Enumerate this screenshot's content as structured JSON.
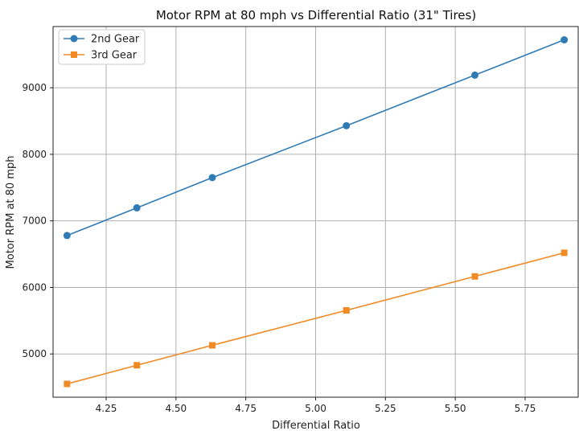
{
  "chart_data": {
    "type": "line",
    "title": "Motor RPM at 80 mph vs Differential Ratio (31\" Tires)",
    "xlabel": "Differential Ratio",
    "ylabel": "Motor RPM at 80 mph",
    "x": [
      4.11,
      4.36,
      4.63,
      5.11,
      5.57,
      5.89
    ],
    "xlim": [
      4.06,
      5.94
    ],
    "ylim": [
      4350,
      9920
    ],
    "xticks": [
      "4.25",
      "4.50",
      "4.75",
      "5.00",
      "5.25",
      "5.50",
      "5.75"
    ],
    "yticks": [
      "5000",
      "6000",
      "7000",
      "8000",
      "9000"
    ],
    "grid": true,
    "legend_position": "top-left",
    "series": [
      {
        "name": "2nd Gear",
        "marker": "circle",
        "color": "#2f7bb6",
        "values": [
          6780,
          7195,
          7650,
          8430,
          9190,
          9720
        ]
      },
      {
        "name": "3rd Gear",
        "marker": "square",
        "color": "#f08a24",
        "values": [
          4550,
          4830,
          5130,
          5655,
          6165,
          6520
        ]
      }
    ]
  }
}
